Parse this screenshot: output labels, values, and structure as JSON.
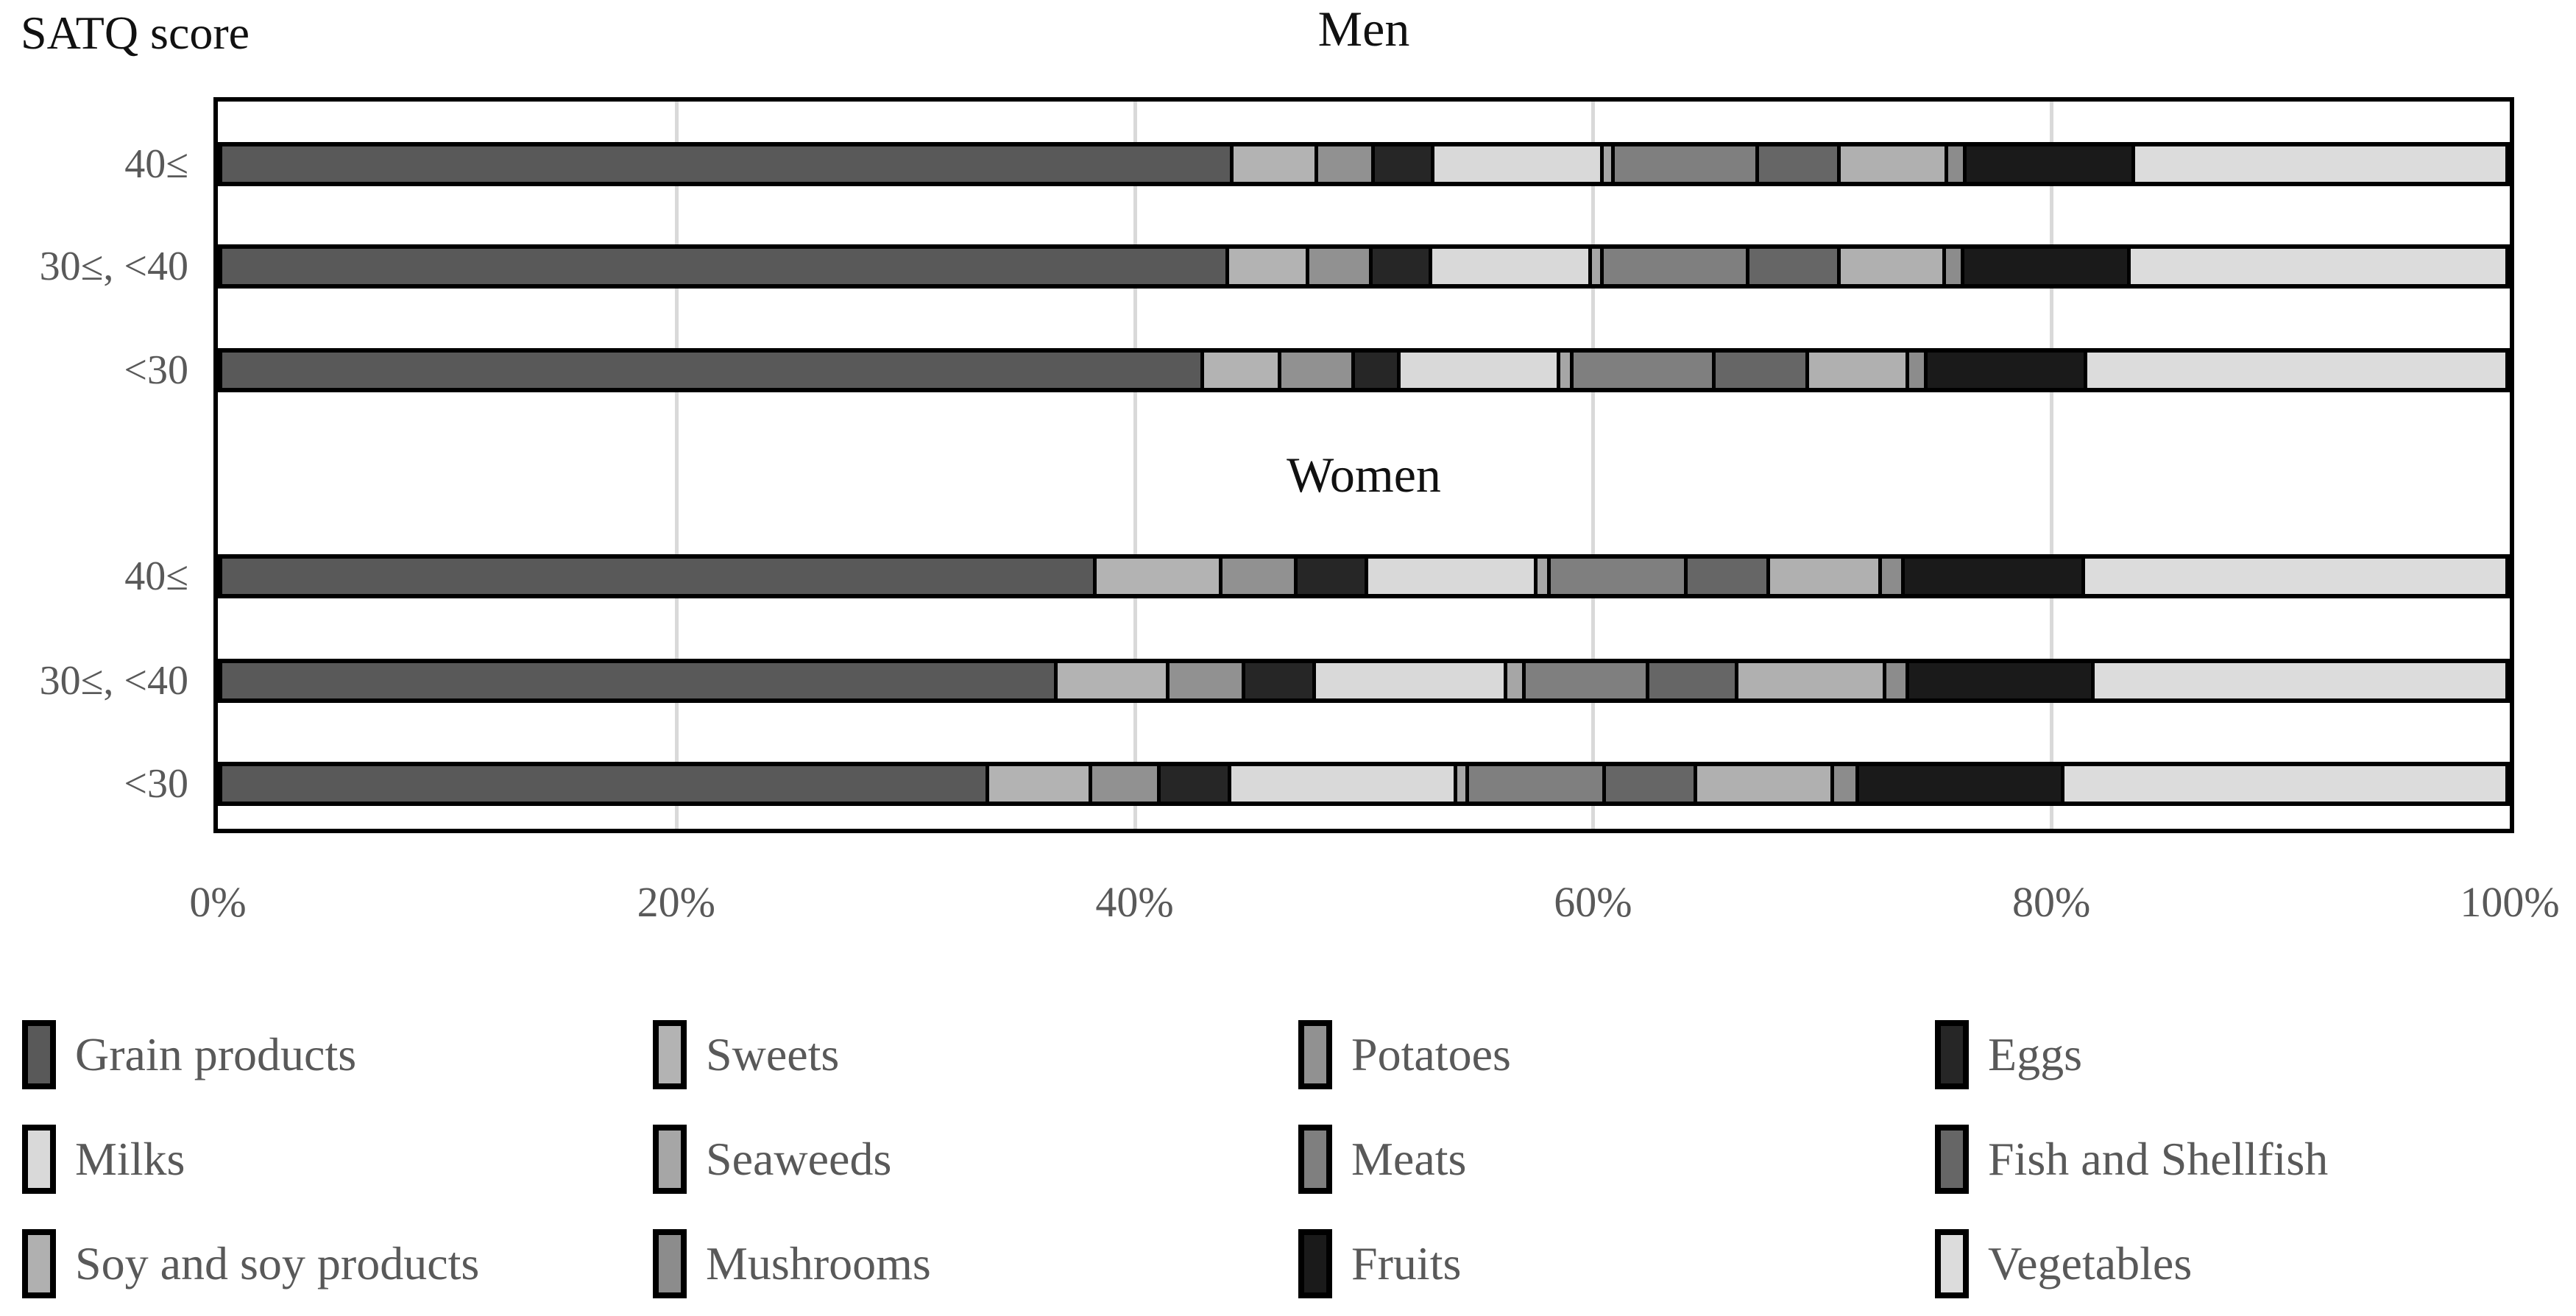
{
  "title": "SATQ score",
  "legend": {
    "items": [
      {
        "label": "Grain products",
        "color": "#595959"
      },
      {
        "label": "Sweets",
        "color": "#b3b3b3"
      },
      {
        "label": "Potatoes",
        "color": "#919191"
      },
      {
        "label": "Eggs",
        "color": "#262626"
      },
      {
        "label": "Milks",
        "color": "#d9d9d9"
      },
      {
        "label": "Seaweeds",
        "color": "#a6a6a6"
      },
      {
        "label": "Meats",
        "color": "#7f7f7f"
      },
      {
        "label": "Fish and Shellfish",
        "color": "#666666"
      },
      {
        "label": "Soy and soy products",
        "color": "#b0b0b0"
      },
      {
        "label": "Mushrooms",
        "color": "#8c8c8c"
      },
      {
        "label": "Fruits",
        "color": "#1a1a1a"
      },
      {
        "label": "Vegetables",
        "color": "#dcdcdc"
      }
    ]
  },
  "chart_data": {
    "type": "bar",
    "stacked": true,
    "orientation": "horizontal",
    "unit": "%",
    "axis_title": "SATQ score",
    "x_ticks": [
      "0%",
      "20%",
      "40%",
      "60%",
      "80%",
      "100%"
    ],
    "xlim": [
      0,
      100
    ],
    "gridlines": [
      20,
      40,
      60,
      80
    ],
    "series": [
      "Grain products",
      "Sweets",
      "Potatoes",
      "Eggs",
      "Milks",
      "Seaweeds",
      "Meats",
      "Fish and Shellfish",
      "Soy and soy products",
      "Mushrooms",
      "Fruits",
      "Vegetables"
    ],
    "groups": [
      {
        "name": "Men",
        "categories": [
          "40≤",
          "30≤, <40",
          "<30"
        ],
        "values": [
          [
            44.3,
            3.7,
            2.5,
            2.6,
            7.4,
            0.5,
            6.3,
            3.6,
            4.7,
            0.8,
            7.4,
            16.2
          ],
          [
            44.1,
            3.5,
            2.8,
            2.6,
            7.0,
            0.5,
            6.4,
            4.0,
            4.6,
            0.8,
            7.3,
            16.4
          ],
          [
            43.0,
            3.4,
            3.2,
            2.0,
            7.0,
            0.6,
            6.2,
            4.1,
            4.4,
            0.8,
            7.0,
            18.3
          ]
        ]
      },
      {
        "name": "Women",
        "categories": [
          "40≤",
          "30≤, <40",
          "<30"
        ],
        "values": [
          [
            38.3,
            5.5,
            3.3,
            3.1,
            7.4,
            0.6,
            6.0,
            3.6,
            4.9,
            1.0,
            7.9,
            18.4
          ],
          [
            36.6,
            4.9,
            3.3,
            3.1,
            8.4,
            0.8,
            5.4,
            3.9,
            6.5,
            1.0,
            8.1,
            18.0
          ],
          [
            33.6,
            4.5,
            3.0,
            3.1,
            9.9,
            0.5,
            6.0,
            4.0,
            6.0,
            1.1,
            9.0,
            19.3
          ]
        ]
      }
    ]
  }
}
